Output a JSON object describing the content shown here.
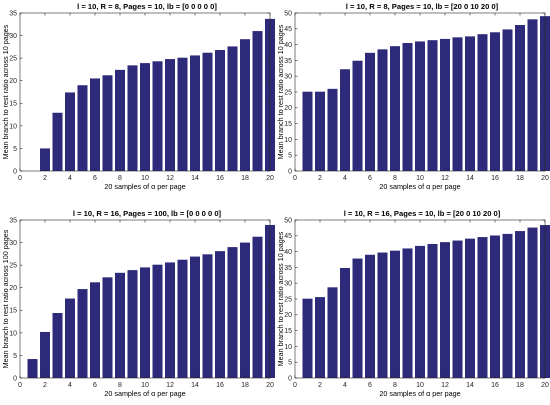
{
  "chart_data": [
    {
      "type": "bar",
      "title": "l = 10, R = 8, Pages = 10, lb = [0  0  0  0  0]",
      "xlabel": "20 samples of α per page",
      "ylabel": "Mean branch to rest ratio across 10 pages",
      "xlim": [
        0,
        20
      ],
      "ylim": [
        0,
        35
      ],
      "xticks": [
        "0",
        "2",
        "4",
        "6",
        "8",
        "10",
        "12",
        "14",
        "16",
        "18",
        "20"
      ],
      "yticks": [
        "0",
        "5",
        "10",
        "15",
        "20",
        "25",
        "30",
        "35"
      ],
      "color": "#2e2a7a",
      "x": [
        1,
        2,
        3,
        4,
        5,
        6,
        7,
        8,
        9,
        10,
        11,
        12,
        13,
        14,
        15,
        16,
        17,
        18,
        19,
        20
      ],
      "values": [
        0,
        5,
        12.9,
        17.4,
        19,
        20.5,
        21.2,
        22.4,
        23.4,
        23.9,
        24.3,
        24.8,
        25.1,
        25.6,
        26.2,
        26.8,
        27.6,
        29.2,
        31,
        33.7
      ]
    },
    {
      "type": "bar",
      "title": "l = 10, R = 8, Pages = 10, lb = [20  0  10  20   0]",
      "xlabel": "20 samples of α per page",
      "ylabel": "Mean branch to rest ratio across 10 pages",
      "xlim": [
        0,
        20
      ],
      "ylim": [
        0,
        50
      ],
      "xticks": [
        "0",
        "2",
        "4",
        "6",
        "8",
        "10",
        "12",
        "14",
        "16",
        "18",
        "20"
      ],
      "yticks": [
        "0",
        "5",
        "10",
        "15",
        "20",
        "25",
        "30",
        "35",
        "40",
        "45",
        "50"
      ],
      "color": "#2e2a7a",
      "x": [
        1,
        2,
        3,
        4,
        5,
        6,
        7,
        8,
        9,
        10,
        11,
        12,
        13,
        14,
        15,
        16,
        17,
        18,
        19,
        20
      ],
      "values": [
        25.1,
        25.1,
        26,
        32.2,
        34.9,
        37.4,
        38.5,
        39.5,
        40.5,
        41,
        41.4,
        41.8,
        42.3,
        42.6,
        43.3,
        43.9,
        44.8,
        46.2,
        48,
        49
      ]
    },
    {
      "type": "bar",
      "title": "l = 10, R = 16, Pages = 100, lb = [0  0  0  0  0]",
      "xlabel": "20 samples of α per page",
      "ylabel": "Mean branch to rest ratio across 100 pages",
      "xlim": [
        0,
        20
      ],
      "ylim": [
        0,
        35
      ],
      "xticks": [
        "0",
        "2",
        "4",
        "6",
        "8",
        "10",
        "12",
        "14",
        "16",
        "18",
        "20"
      ],
      "yticks": [
        "0",
        "5",
        "10",
        "15",
        "20",
        "25",
        "30",
        "35"
      ],
      "color": "#2e2a7a",
      "x": [
        1,
        2,
        3,
        4,
        5,
        6,
        7,
        8,
        9,
        10,
        11,
        12,
        13,
        14,
        15,
        16,
        17,
        18,
        19,
        20
      ],
      "values": [
        4.2,
        10.2,
        14.4,
        17.6,
        19.7,
        21.2,
        22.3,
        23.3,
        23.9,
        24.5,
        25.1,
        25.6,
        26.2,
        26.9,
        27.4,
        28.1,
        29,
        30,
        31.3,
        33.9
      ]
    },
    {
      "type": "bar",
      "title": "l = 10, R = 16, Pages = 10, lb = [20  0  10  20   0]",
      "xlabel": "20 samples of α per page",
      "ylabel": "Mean branch to rest ratio across 10 pages",
      "xlim": [
        0,
        20
      ],
      "ylim": [
        0,
        50
      ],
      "xticks": [
        "0",
        "2",
        "4",
        "6",
        "8",
        "10",
        "12",
        "14",
        "16",
        "18",
        "20"
      ],
      "yticks": [
        "0",
        "5",
        "10",
        "15",
        "20",
        "25",
        "30",
        "35",
        "40",
        "45",
        "50"
      ],
      "color": "#2e2a7a",
      "x": [
        1,
        2,
        3,
        4,
        5,
        6,
        7,
        8,
        9,
        10,
        11,
        12,
        13,
        14,
        15,
        16,
        17,
        18,
        19,
        20
      ],
      "values": [
        25.1,
        25.6,
        28.7,
        34.8,
        37.8,
        39,
        39.7,
        40.3,
        41,
        41.8,
        42.4,
        43,
        43.5,
        44.1,
        44.6,
        45.1,
        45.6,
        46.5,
        47.6,
        48.4
      ]
    }
  ]
}
